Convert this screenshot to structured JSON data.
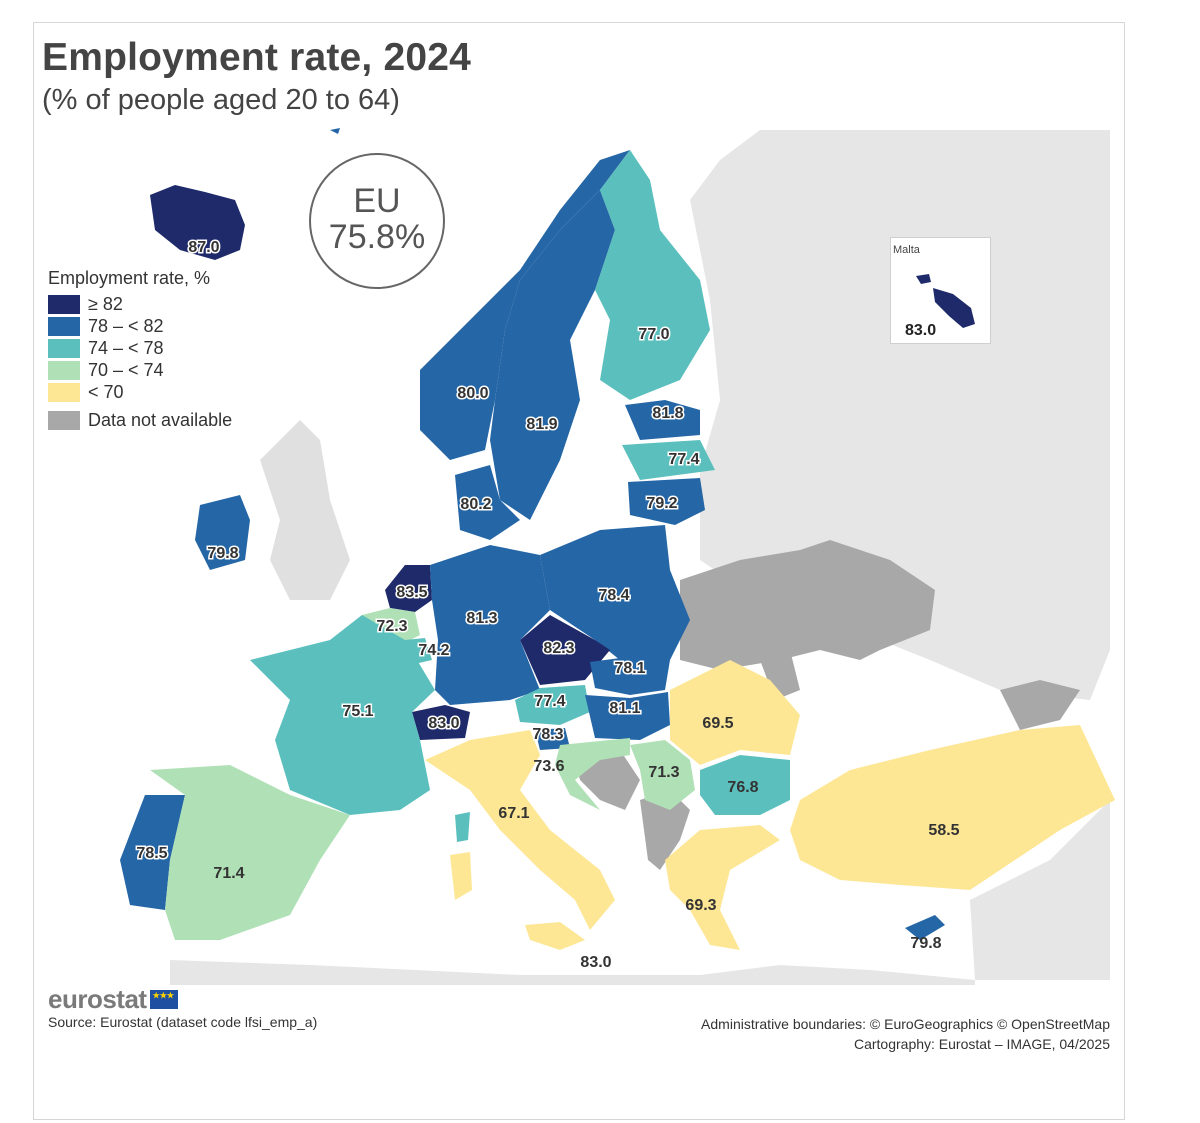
{
  "title": "Employment rate, 2024",
  "subtitle": "(% of people aged 20 to 64)",
  "eu": {
    "label": "EU",
    "value": "75.8%"
  },
  "legend": {
    "title": "Employment rate, %",
    "classes": [
      {
        "label": "≥ 82",
        "color": "#1f2a6b"
      },
      {
        "label": "78 – < 82",
        "color": "#2466a6"
      },
      {
        "label": "74 – < 78",
        "color": "#5bc0bd"
      },
      {
        "label": "70 – < 74",
        "color": "#b0e0b6"
      },
      {
        "label": "< 70",
        "color": "#fde795"
      }
    ],
    "na_label": "Data not available",
    "na_color": "#a8a8a8"
  },
  "inset": {
    "name": "Malta",
    "value": "83.0"
  },
  "chart_data": {
    "type": "choropleth",
    "title": "Employment rate, 2024",
    "subtitle": "(% of people aged 20 to 64)",
    "unit": "%",
    "eu_average": 75.8,
    "regions": [
      {
        "name": "Iceland",
        "value": "87.0",
        "class": 0
      },
      {
        "name": "Norway",
        "value": "80.0",
        "class": 1
      },
      {
        "name": "Sweden",
        "value": "81.9",
        "class": 1
      },
      {
        "name": "Finland",
        "value": "77.0",
        "class": 2
      },
      {
        "name": "Estonia",
        "value": "81.8",
        "class": 1
      },
      {
        "name": "Latvia",
        "value": "77.4",
        "class": 2
      },
      {
        "name": "Lithuania",
        "value": "79.2",
        "class": 1
      },
      {
        "name": "Denmark",
        "value": "80.2",
        "class": 1
      },
      {
        "name": "Ireland",
        "value": "79.8",
        "class": 1
      },
      {
        "name": "Netherlands",
        "value": "83.5",
        "class": 0
      },
      {
        "name": "Belgium",
        "value": "72.3",
        "class": 3
      },
      {
        "name": "Luxembourg",
        "value": "74.2",
        "class": 2
      },
      {
        "name": "Germany",
        "value": "81.3",
        "class": 1
      },
      {
        "name": "Poland",
        "value": "78.4",
        "class": 1
      },
      {
        "name": "Czechia",
        "value": "82.3",
        "class": 0
      },
      {
        "name": "Slovakia",
        "value": "78.1",
        "class": 1
      },
      {
        "name": "Austria",
        "value": "77.4",
        "class": 2
      },
      {
        "name": "Hungary",
        "value": "81.1",
        "class": 1
      },
      {
        "name": "Switzerland",
        "value": "83.0",
        "class": 0
      },
      {
        "name": "Slovenia",
        "value": "78.3",
        "class": 1
      },
      {
        "name": "Croatia",
        "value": "73.6",
        "class": 3
      },
      {
        "name": "France",
        "value": "75.1",
        "class": 2
      },
      {
        "name": "Romania",
        "value": "69.5",
        "class": 4
      },
      {
        "name": "Serbia",
        "value": "71.3",
        "class": 3
      },
      {
        "name": "Bulgaria",
        "value": "76.8",
        "class": 2
      },
      {
        "name": "Italy",
        "value": "67.1",
        "class": 4
      },
      {
        "name": "Portugal",
        "value": "78.5",
        "class": 1
      },
      {
        "name": "Spain",
        "value": "71.4",
        "class": 3
      },
      {
        "name": "Greece",
        "value": "69.3",
        "class": 4
      },
      {
        "name": "Türkiye",
        "value": "58.5",
        "class": 4
      },
      {
        "name": "Cyprus",
        "value": "79.8",
        "class": 1
      },
      {
        "name": "Malta",
        "value": "83.0",
        "class": 0
      }
    ]
  },
  "logo": {
    "text": "eurostat"
  },
  "source": "Source: Eurostat (dataset code lfsi_emp_a)",
  "credits": {
    "line1": "Administrative boundaries: © EuroGeographics © OpenStreetMap",
    "line2": "Cartography: Eurostat – IMAGE, 04/2025"
  }
}
